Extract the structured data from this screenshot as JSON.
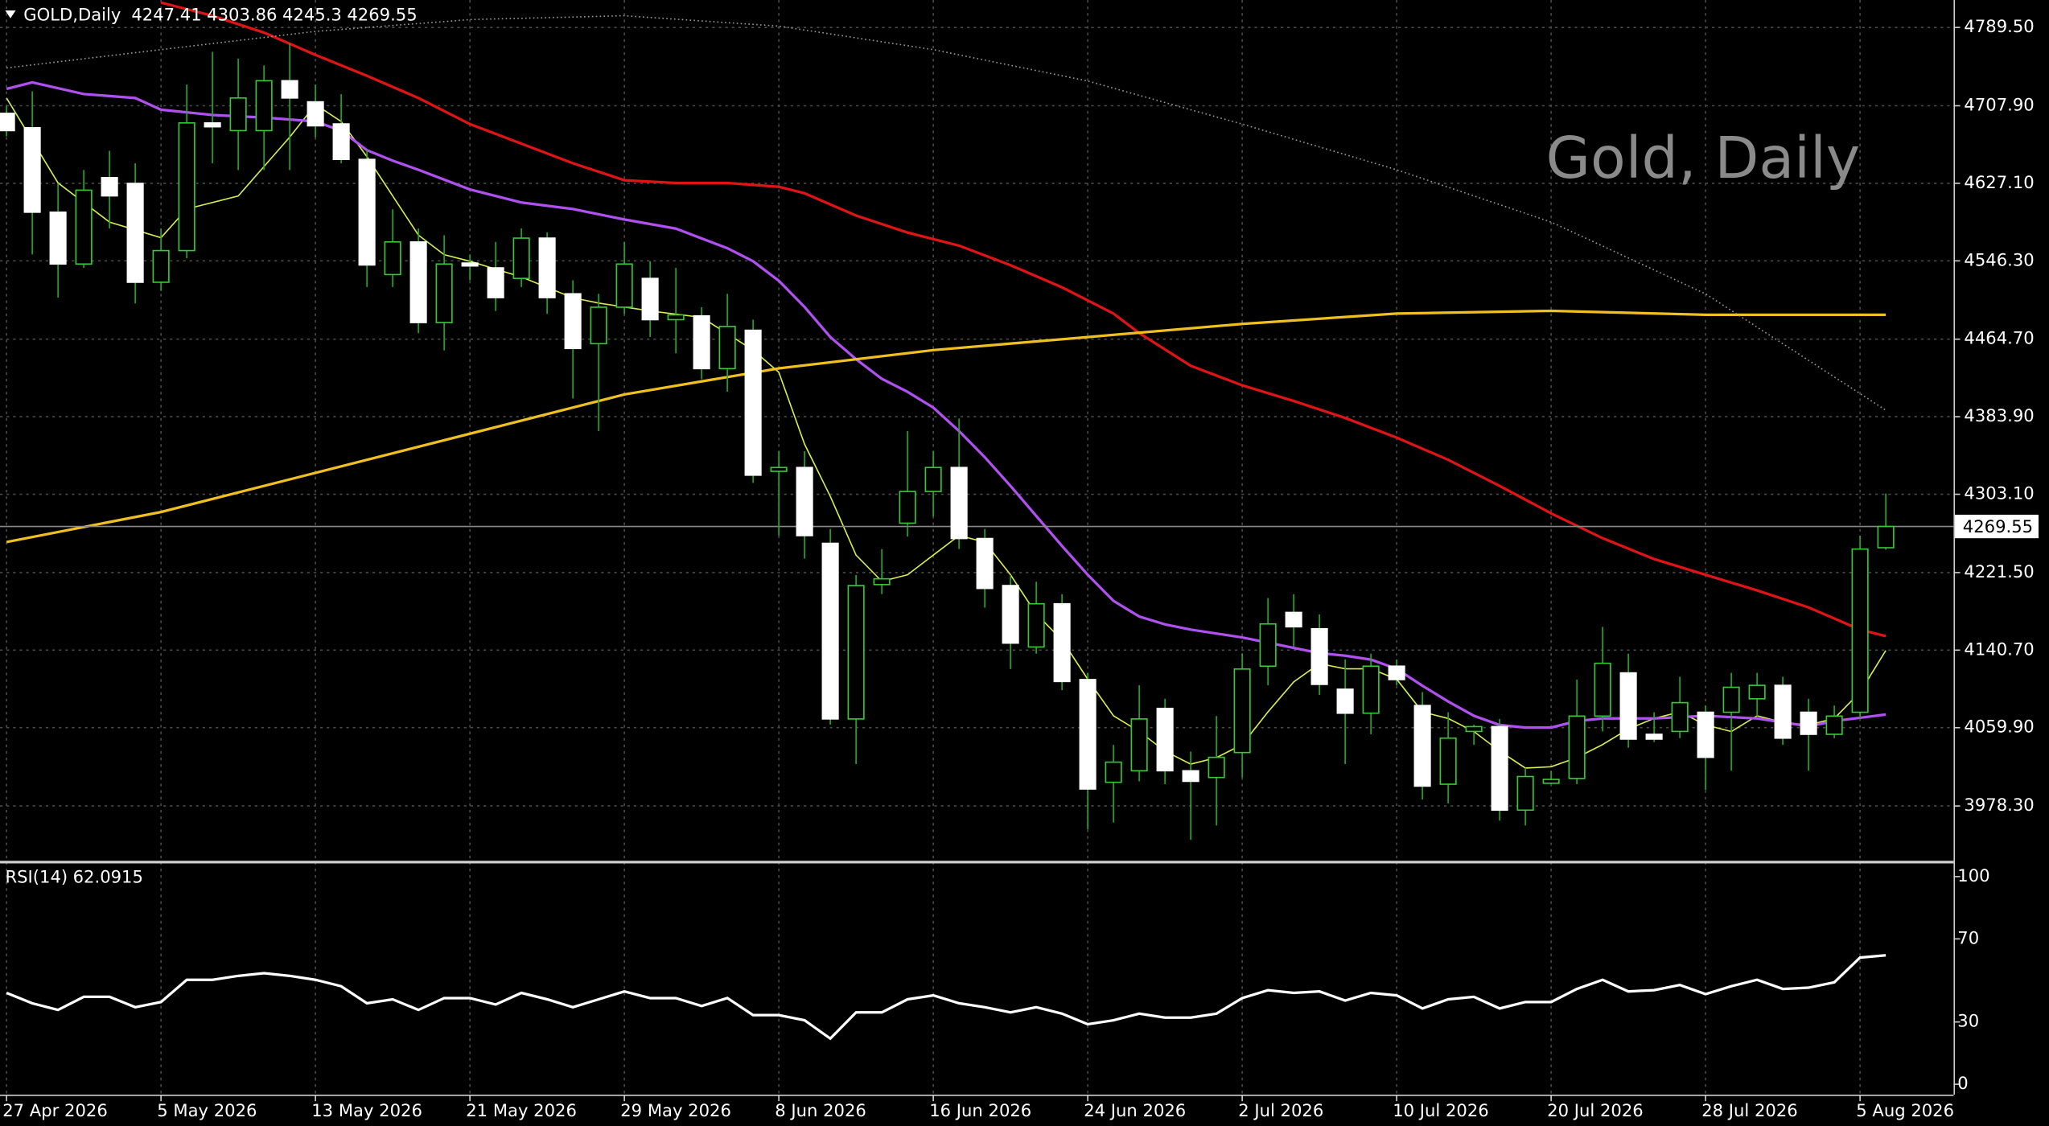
{
  "chart_data": [
    {
      "type": "candlestick",
      "title": "GOLD,Daily",
      "watermark": "Gold, Daily",
      "categories": [
        "27 Apr 2026",
        null,
        null,
        null,
        null,
        null,
        "5 May 2026",
        null,
        null,
        null,
        null,
        null,
        "13 May 2026",
        null,
        null,
        null,
        null,
        null,
        "21 May 2026",
        null,
        null,
        null,
        null,
        null,
        "29 May 2026",
        null,
        null,
        null,
        null,
        null,
        "8 Jun 2026",
        null,
        null,
        null,
        null,
        null,
        "16 Jun 2026",
        null,
        null,
        null,
        null,
        null,
        "24 Jun 2026",
        null,
        null,
        null,
        null,
        null,
        "2 Jul 2026",
        null,
        null,
        null,
        null,
        null,
        "10 Jul 2026",
        null,
        null,
        null,
        null,
        null,
        "20 Jul 2026",
        null,
        null,
        null,
        null,
        null,
        "28 Jul 2026",
        null,
        null,
        null,
        null,
        null,
        "5 Aug 2026",
        null
      ],
      "open": [
        4700,
        4685,
        4597,
        4543,
        4633,
        4627,
        4524,
        4557,
        4690,
        4682,
        4682,
        4734,
        4712,
        4689,
        4652,
        4532,
        4566,
        4482,
        4544,
        4539,
        4528,
        4570,
        4512,
        4460,
        4498,
        4528,
        4485,
        4489,
        4434,
        4474,
        4327,
        4331,
        4252,
        4069,
        4209,
        4273,
        4306,
        4331,
        4257,
        4208,
        4144,
        4189,
        4110,
        4003,
        4015,
        4080,
        4015,
        4008,
        4034,
        4124,
        4180,
        4163,
        4100,
        4075,
        4124,
        4083,
        4001,
        4056,
        4061,
        3974,
        4002,
        4007,
        4072,
        4117,
        4053,
        4056,
        4076,
        4076,
        4090,
        4104,
        4076,
        4053,
        4076,
        4247.41
      ],
      "high": [
        4708,
        4723,
        4627,
        4641,
        4661,
        4648,
        4580,
        4730,
        4764,
        4757,
        4750,
        4773,
        4730,
        4720,
        4662,
        4600,
        4580,
        4573,
        4553,
        4566,
        4580,
        4576,
        4526,
        4512,
        4566,
        4546,
        4539,
        4498,
        4512,
        4485,
        4348,
        4348,
        4267,
        4219,
        4246,
        4369,
        4348,
        4382,
        4267,
        4219,
        4212,
        4199,
        4117,
        4042,
        4104,
        4090,
        4035,
        4072,
        4137,
        4195,
        4199,
        4178,
        4131,
        4137,
        4131,
        4097,
        4076,
        4063,
        4069,
        4018,
        4015,
        4110,
        4165,
        4137,
        4076,
        4113,
        4083,
        4117,
        4117,
        4113,
        4090,
        4083,
        4260,
        4303.86
      ],
      "low": [
        4676,
        4553,
        4508,
        4539,
        4580,
        4502,
        4515,
        4549,
        4648,
        4641,
        4641,
        4641,
        4675,
        4648,
        4519,
        4519,
        4471,
        4453,
        4526,
        4494,
        4519,
        4491,
        4403,
        4369,
        4491,
        4467,
        4450,
        4423,
        4410,
        4315,
        4260,
        4236,
        4063,
        4022,
        4199,
        4259,
        4280,
        4246,
        4185,
        4121,
        4137,
        4099,
        3954,
        3961,
        4004,
        4001,
        3943,
        3958,
        4008,
        4104,
        4144,
        4094,
        4022,
        4053,
        4104,
        3985,
        3981,
        4042,
        3963,
        3958,
        4001,
        4001,
        4056,
        4039,
        4045,
        4049,
        3995,
        4015,
        4072,
        4042,
        4015,
        4049,
        4069,
        4245.3
      ],
      "close": [
        4682,
        4597,
        4543,
        4620,
        4614,
        4524,
        4557,
        4690,
        4686,
        4716,
        4734,
        4716,
        4687,
        4652,
        4542,
        4566,
        4482,
        4543,
        4541,
        4508,
        4570,
        4508,
        4455,
        4498,
        4543,
        4485,
        4490,
        4434,
        4478,
        4323,
        4331,
        4260,
        4069,
        4208,
        4215,
        4306,
        4331,
        4257,
        4205,
        4148,
        4189,
        4108,
        3996,
        4024,
        4069,
        4015,
        4004,
        4029,
        4121,
        4168,
        4165,
        4105,
        4075,
        4124,
        4110,
        3999,
        4049,
        4061,
        3974,
        4009,
        4006,
        4072,
        4127,
        4048,
        4048,
        4086,
        4029,
        4102,
        4104,
        4049,
        4053,
        4072,
        4246,
        4269.55
      ],
      "bull_color": "#33cc33",
      "bear_color": "#ffffff",
      "wick_color": "#22aa22",
      "overlays": [
        {
          "color": "#d8ec50",
          "width": 1,
          "x": [
            0,
            2,
            4,
            6,
            7,
            9,
            11,
            12,
            13,
            14,
            16,
            17,
            18,
            20,
            22,
            23,
            25,
            27,
            29,
            30,
            31,
            32,
            33,
            34,
            35,
            36,
            37,
            38,
            39,
            40,
            41,
            42,
            43,
            44,
            45,
            46,
            47,
            48,
            49,
            50,
            51,
            52,
            53,
            54,
            55,
            56,
            57,
            58,
            59,
            60,
            61,
            62,
            63,
            64,
            65,
            66,
            67,
            68,
            69,
            70,
            71,
            72,
            73
          ],
          "values": [
            4716.0,
            4627.5,
            4586.7,
            4570.4,
            4600.3,
            4613.9,
            4675.2,
            4709.2,
            4691.5,
            4654.8,
            4573.1,
            4552.7,
            4545.9,
            4529.5,
            4507.8,
            4502.3,
            4494.2,
            4487.4,
            4453.3,
            4430.2,
            4355.3,
            4300.9,
            4239.7,
            4212.4,
            4219.2,
            4239.7,
            4260.1,
            4253.3,
            4219.2,
            4178.4,
            4151.2,
            4110.4,
            4072.3,
            4055.9,
            4035.5,
            4021.9,
            4028.7,
            4042.3,
            4076.3,
            4107.6,
            4126.7,
            4121.2,
            4121.2,
            4110.4,
            4076.3,
            4069.5,
            4055.9,
            4035.5,
            4017.8,
            4019.2,
            4028.7,
            4042.3,
            4058.6,
            4069.5,
            4076.3,
            4062.7,
            4055.9,
            4072.3,
            4065.4,
            4062.7,
            4069.5,
            4096.8,
            4140.3
          ]
        },
        {
          "color": "#b050f0",
          "width": 2,
          "x": [
            0,
            1,
            3,
            5,
            6,
            8,
            10,
            12,
            13,
            14,
            15,
            16,
            18,
            20,
            22,
            24,
            26,
            28,
            29,
            30,
            31,
            32,
            33,
            34,
            35,
            36,
            37,
            38,
            39,
            40,
            41,
            42,
            43,
            44,
            45,
            46,
            47,
            48,
            49,
            50,
            51,
            52,
            53,
            54,
            55,
            56,
            57,
            58,
            59,
            60,
            61,
            62,
            64,
            66,
            68,
            70,
            71,
            73
          ],
          "values": [
            4725.5,
            4732.3,
            4720.1,
            4716.0,
            4703.8,
            4698.3,
            4695.6,
            4691.5,
            4682.0,
            4661.6,
            4650.7,
            4641.2,
            4620.7,
            4607.1,
            4600.3,
            4589.4,
            4579.9,
            4559.5,
            4545.9,
            4525.5,
            4498.2,
            4466.9,
            4443.8,
            4423.4,
            4409.8,
            4393.4,
            4369.0,
            4341.7,
            4311.8,
            4280.5,
            4249.2,
            4219.2,
            4192.0,
            4175.7,
            4167.5,
            4162.1,
            4158.0,
            4153.9,
            4148.5,
            4143.0,
            4137.6,
            4134.9,
            4130.8,
            4121.2,
            4103.6,
            4087.2,
            4072.3,
            4062.7,
            4060.0,
            4060.0,
            4066.8,
            4069.5,
            4069.5,
            4072.3,
            4069.5,
            4061.4,
            4066.8,
            4073.6
          ]
        },
        {
          "color": "#e01414",
          "width": 2,
          "x": [
            6,
            8,
            10,
            12,
            14,
            16,
            18,
            20,
            22,
            24,
            26,
            28,
            30,
            31,
            33,
            35,
            37,
            39,
            41,
            43,
            44,
            46,
            48,
            50,
            52,
            54,
            56,
            58,
            60,
            62,
            64,
            66,
            68,
            70,
            72,
            73
          ],
          "values": [
            4815.4,
            4801.7,
            4784.1,
            4760.9,
            4739.1,
            4716.0,
            4688.8,
            4668.4,
            4648.0,
            4630.3,
            4627.5,
            4627.5,
            4623.5,
            4616.7,
            4593.5,
            4575.8,
            4562.2,
            4541.8,
            4518.7,
            4491.4,
            4471.0,
            4437.0,
            4416.6,
            4400.3,
            4382.6,
            4362.1,
            4339.0,
            4311.8,
            4283.2,
            4257.3,
            4235.6,
            4219.2,
            4202.9,
            4185.2,
            4162.1,
            4155.3
          ]
        },
        {
          "color": "#f0c020",
          "width": 2,
          "x": [
            0,
            6,
            12,
            18,
            24,
            30,
            36,
            42,
            48,
            54,
            60,
            66,
            73
          ],
          "values": [
            4253.3,
            4284.6,
            4325.4,
            4366.2,
            4407.1,
            4434.3,
            4453.3,
            4466.9,
            4480.6,
            4491.4,
            4494.2,
            4490.1,
            4490.1
          ]
        },
        {
          "color": "#9a9a9a",
          "width": 1,
          "dotted": true,
          "x": [
            0,
            6,
            12,
            18,
            24,
            30,
            36,
            42,
            48,
            54,
            60,
            66,
            73
          ],
          "values": [
            4747.3,
            4766.4,
            4785.4,
            4797.7,
            4801.7,
            4790.9,
            4766.4,
            4733.7,
            4688.8,
            4641.2,
            4586.7,
            4511.9,
            4390.7
          ]
        }
      ],
      "ylim": [
        3919.8,
        4818.1
      ],
      "yticks": [
        {
          "value": 3978.3,
          "label": "3978.30"
        },
        {
          "value": 4059.9,
          "label": "4059.90"
        },
        {
          "value": 4140.7,
          "label": "4140.70"
        },
        {
          "value": 4221.5,
          "label": "4221.50"
        },
        {
          "value": 4303.1,
          "label": "4303.10"
        },
        {
          "value": 4383.9,
          "label": "4383.90"
        },
        {
          "value": 4464.7,
          "label": "4464.70"
        },
        {
          "value": 4546.3,
          "label": "4546.30"
        },
        {
          "value": 4627.1,
          "label": "4627.10"
        },
        {
          "value": 4707.9,
          "label": "4707.90"
        },
        {
          "value": 4789.5,
          "label": "4789.50"
        }
      ],
      "grid": true
    },
    {
      "type": "line",
      "title": "RSI(14)",
      "color": "#ffffff",
      "values": [
        44.0,
        39.0,
        35.8,
        42.1,
        42.1,
        37.1,
        39.6,
        50.3,
        50.3,
        52.2,
        53.5,
        52.2,
        50.3,
        47.2,
        39.0,
        40.9,
        35.8,
        41.5,
        41.5,
        38.4,
        44.0,
        40.9,
        37.1,
        40.9,
        44.7,
        41.5,
        41.5,
        37.7,
        41.5,
        33.3,
        33.3,
        30.8,
        22.0,
        34.6,
        34.6,
        40.9,
        42.8,
        39.0,
        37.1,
        34.6,
        37.1,
        34.0,
        28.9,
        30.8,
        34.0,
        32.1,
        32.1,
        34.0,
        41.5,
        45.3,
        44.0,
        44.7,
        40.3,
        44.0,
        42.8,
        36.5,
        40.9,
        42.1,
        36.5,
        39.6,
        39.6,
        45.9,
        50.3,
        44.7,
        45.3,
        47.8,
        43.4,
        47.2,
        50.3,
        45.9,
        46.5,
        49.1,
        61.0,
        62.0915
      ],
      "ylim": [
        -5,
        105.7
      ],
      "yticks": [
        0,
        30,
        70,
        100
      ],
      "grid": true
    }
  ]
}
